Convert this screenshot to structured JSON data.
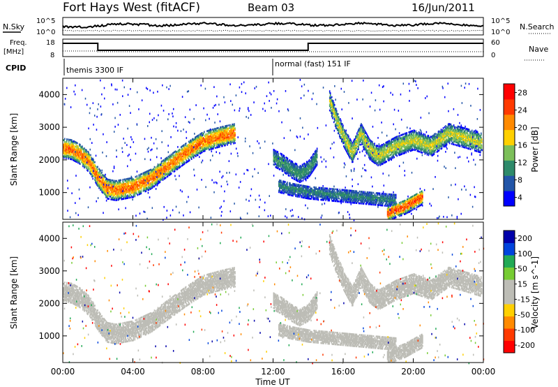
{
  "header": {
    "title": "Fort Hays West (fitACF)",
    "beam": "Beam 03",
    "date": "16/Jun/2011"
  },
  "noise_panel": {
    "left_label": "N.Sky",
    "right_label": "N.Search",
    "left_ticks": [
      "10^5",
      "10^0"
    ],
    "right_ticks": [
      "10^5",
      "10^0"
    ]
  },
  "freq_panel": {
    "left_label_1": "Freq.",
    "left_label_2": "[MHz]",
    "right_label": "Nave",
    "left_ticks": [
      "18",
      "8"
    ],
    "right_ticks": [
      "60",
      "0"
    ]
  },
  "cpid": {
    "label": "CPID",
    "modes": [
      {
        "text": "themis 3300 IF",
        "start_hour": 0
      },
      {
        "text": "normal (fast) 151 IF",
        "start_hour": 12
      }
    ]
  },
  "x_axis": {
    "label": "Time UT",
    "ticks": [
      "00:00",
      "04:00",
      "08:00",
      "12:00",
      "16:00",
      "20:00",
      "00:00"
    ]
  },
  "chart_data": [
    {
      "type": "heatmap",
      "title": "",
      "xlabel": "Time UT",
      "ylabel": "Slant Range [km]",
      "xlim": [
        0,
        24
      ],
      "ylim": [
        180,
        4500
      ],
      "yticks": [
        "1000",
        "2000",
        "3000",
        "4000"
      ],
      "colorbar": {
        "label": "Power [dB]",
        "ticks": [
          "4",
          "8",
          "12",
          "16",
          "20",
          "24",
          "28"
        ],
        "range": [
          0,
          32
        ],
        "colors": [
          "#0000ff",
          "#2255a8",
          "#2e8a6a",
          "#7cbf5a",
          "#ffd000",
          "#ff8a00",
          "#ff3a00",
          "#ff0000"
        ]
      },
      "echo_bands": [
        {
          "t": [
            0.0,
            0.5,
            1.0,
            1.5,
            2.0,
            2.5,
            3.0,
            4.0,
            5.0,
            6.0,
            7.0,
            8.0,
            9.0,
            9.8
          ],
          "range": [
            2350,
            2300,
            2150,
            1900,
            1450,
            1100,
            1050,
            1150,
            1400,
            1800,
            2200,
            2550,
            2700,
            2800
          ],
          "width": 300,
          "peak_db": 26
        },
        {
          "t": [
            12.0,
            12.5,
            13.0,
            13.5,
            14.0,
            14.5
          ],
          "range": [
            2050,
            1900,
            1700,
            1550,
            1700,
            2100
          ],
          "width": 250,
          "peak_db": 12
        },
        {
          "t": [
            15.2,
            15.6,
            16.0,
            16.5,
            17.0,
            17.5,
            18.0,
            19.0,
            20.0,
            21.0,
            22.0,
            23.0,
            23.9
          ],
          "range": [
            3800,
            3200,
            2700,
            2200,
            2800,
            2300,
            2100,
            2400,
            2600,
            2400,
            2800,
            2650,
            2500
          ],
          "width": 300,
          "peak_db": 18
        },
        {
          "t": [
            12.3,
            13.0,
            14.0,
            15.0,
            16.0,
            17.0,
            18.0,
            19.0
          ],
          "range": [
            1200,
            1100,
            1000,
            950,
            900,
            850,
            800,
            750
          ],
          "width": 200,
          "peak_db": 10
        },
        {
          "t": [
            18.5,
            19.0,
            19.5,
            20.0,
            20.5
          ],
          "range": [
            350,
            450,
            550,
            700,
            850
          ],
          "width": 220,
          "peak_db": 28
        }
      ]
    },
    {
      "type": "heatmap",
      "title": "",
      "xlabel": "Time UT",
      "ylabel": "Slant Range [km]",
      "xlim": [
        0,
        24
      ],
      "ylim": [
        180,
        4500
      ],
      "yticks": [
        "1000",
        "2000",
        "3000",
        "4000"
      ],
      "colorbar": {
        "label": "Velocity [m s^-1]",
        "ticks": [
          "200",
          "100",
          "50",
          "15",
          "-15",
          "-50",
          "-100",
          "-200"
        ],
        "range": [
          -250,
          250
        ],
        "colors": [
          "#0000aa",
          "#0044dd",
          "#22aa55",
          "#77cc33",
          "#bdbdb6",
          "#bdbdb6",
          "#ffd000",
          "#ff8a00",
          "#ff3a00",
          "#ff0000"
        ]
      },
      "ground_scatter_color": "#bdbdb6"
    }
  ]
}
